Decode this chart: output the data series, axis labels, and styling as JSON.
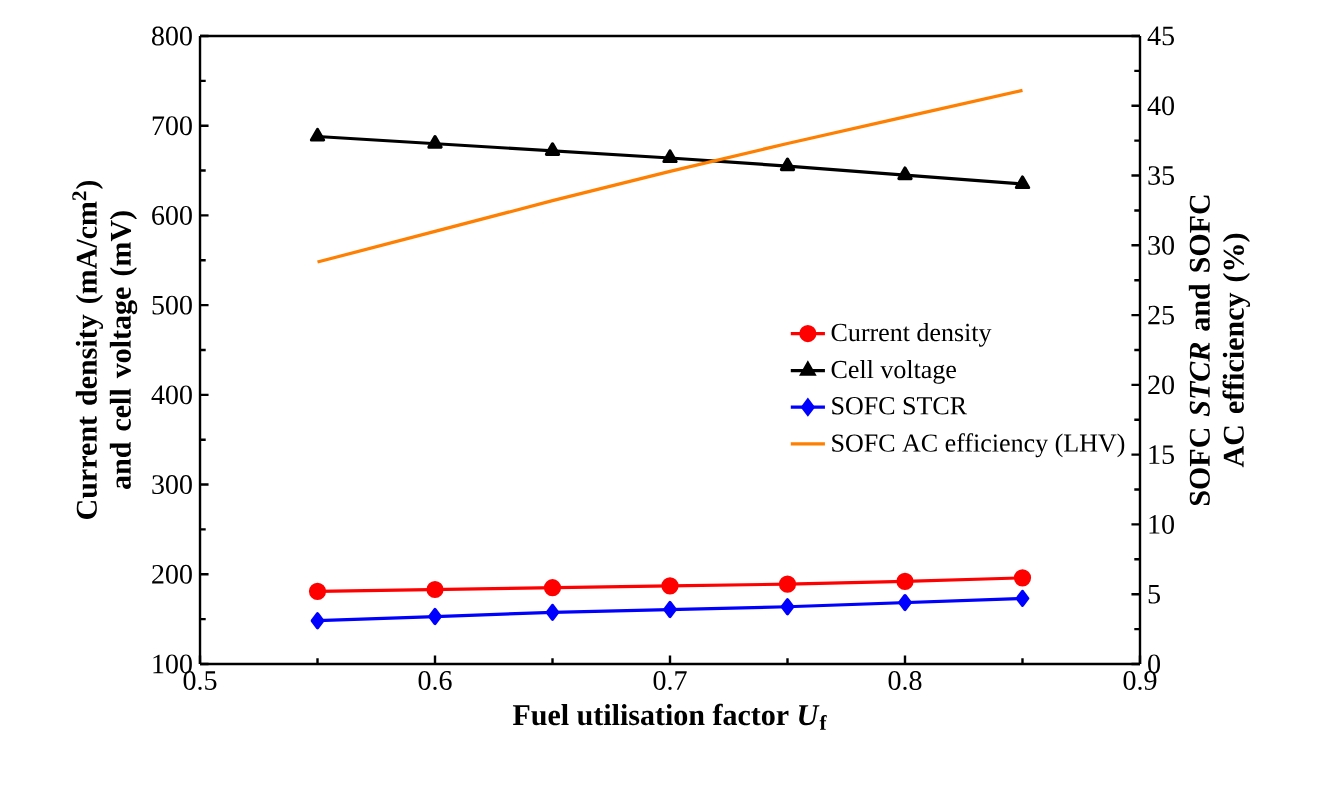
{
  "chart_data": {
    "type": "line",
    "xlabel": "Fuel utilisation factor *U*$_{f}$",
    "ylabel": "Current density (mA/cm$^{2}$) and cell voltage (mV)",
    "y2label": "SOFC *STCR* and SOFC AC efficiency (%)",
    "x": [
      0.55,
      0.6,
      0.65,
      0.7,
      0.75,
      0.8,
      0.85
    ],
    "series": [
      {
        "name": "Current density",
        "color": "#ff0000",
        "marker": "circle",
        "values": [
          181,
          183,
          185,
          187,
          189,
          192,
          196
        ]
      },
      {
        "name": "Cell voltage",
        "color": "#000000",
        "marker": "triangle",
        "values": [
          688,
          680,
          672,
          664,
          655,
          645,
          635
        ]
      },
      {
        "name": "SOFC STCR",
        "color": "#0000ff",
        "marker": "diamond",
        "axis": "y2",
        "values": [
          3.1,
          3.4,
          3.7,
          3.9,
          4.1,
          4.4,
          4.7
        ]
      },
      {
        "name": "SOFC AC efficiency (LHV)",
        "color": "#ff7f00",
        "marker": "none",
        "axis": "y2",
        "values": [
          28.8,
          31.0,
          33.2,
          35.3,
          37.3,
          39.2,
          41.1
        ]
      }
    ],
    "xlim": [
      0.5,
      0.9
    ],
    "xticks": [
      0.5,
      0.6,
      0.7,
      0.8,
      0.9
    ],
    "ylim": [
      100,
      800
    ],
    "yticks": [
      100,
      200,
      300,
      400,
      500,
      600,
      700,
      800
    ],
    "y2lim": [
      0,
      45
    ],
    "y2ticks": [
      0,
      5,
      10,
      15,
      20,
      25,
      30,
      35,
      40,
      45
    ],
    "legend": "center right",
    "grid": false
  }
}
